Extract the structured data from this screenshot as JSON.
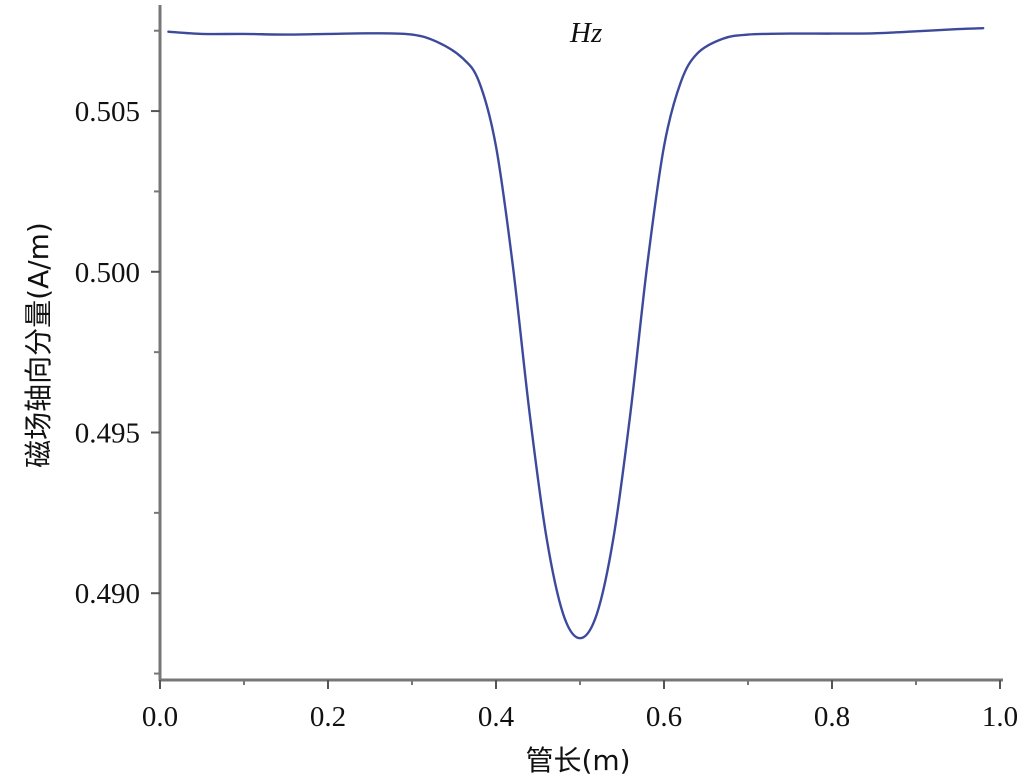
{
  "chart_data": {
    "type": "line",
    "title": "",
    "xlabel": "管长(m)",
    "ylabel": "磁场轴向分量(A/m)",
    "series_label": "Hz",
    "xlim": [
      0.0,
      1.0
    ],
    "ylim": [
      0.4873,
      0.5083
    ],
    "x_ticks": [
      0.0,
      0.2,
      0.4,
      0.6,
      0.8,
      1.0
    ],
    "x_tick_labels": [
      "0.0",
      "0.2",
      "0.4",
      "0.6",
      "0.8",
      "1.0"
    ],
    "y_ticks": [
      0.49,
      0.495,
      0.5,
      0.505
    ],
    "y_tick_labels": [
      "0.490",
      "0.495",
      "0.500",
      "0.505"
    ],
    "grid": false,
    "line_color": "#3d4a9c",
    "series": [
      {
        "x": [
          0.01,
          0.05,
          0.1,
          0.15,
          0.2,
          0.25,
          0.3,
          0.33,
          0.36,
          0.38,
          0.4,
          0.42,
          0.44,
          0.46,
          0.48,
          0.5,
          0.52,
          0.54,
          0.56,
          0.58,
          0.6,
          0.62,
          0.64,
          0.67,
          0.7,
          0.75,
          0.8,
          0.85,
          0.9,
          0.95,
          0.98
        ],
        "y": [
          0.50747,
          0.5074,
          0.5074,
          0.50738,
          0.5074,
          0.50742,
          0.50738,
          0.50715,
          0.50665,
          0.5059,
          0.5039,
          0.5002,
          0.4956,
          0.49175,
          0.48935,
          0.4886,
          0.48935,
          0.49175,
          0.4956,
          0.5002,
          0.5039,
          0.5059,
          0.5068,
          0.50725,
          0.50738,
          0.50741,
          0.50741,
          0.50742,
          0.50748,
          0.50755,
          0.50758
        ]
      }
    ]
  }
}
